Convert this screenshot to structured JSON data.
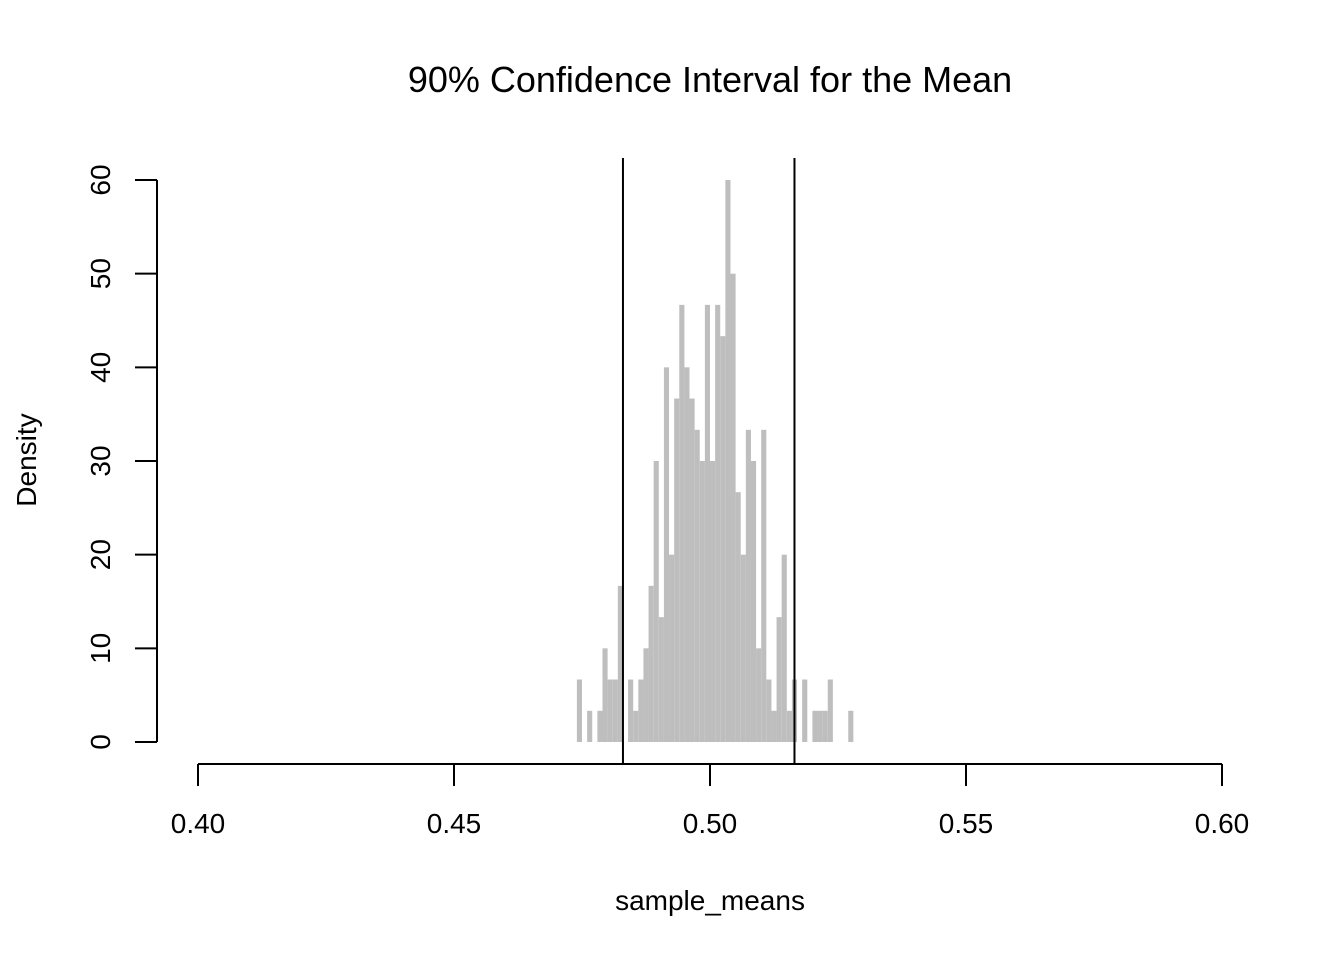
{
  "chart_data": {
    "type": "bar",
    "title": "90% Confidence Interval for the Mean",
    "xlabel": "sample_means",
    "ylabel": "Density",
    "xlim": [
      0.4,
      0.6
    ],
    "ylim": [
      0,
      60
    ],
    "x_ticks": [
      "0.40",
      "0.45",
      "0.50",
      "0.55",
      "0.60"
    ],
    "y_ticks": [
      "0",
      "10",
      "20",
      "30",
      "40",
      "50",
      "60"
    ],
    "bin_width": 0.001,
    "bin_start": 0.474,
    "density": [
      6.67,
      0,
      3.33,
      0,
      3.33,
      10,
      6.67,
      6.67,
      16.67,
      0,
      6.67,
      3.33,
      6.67,
      10,
      16.67,
      30,
      13.33,
      40,
      20,
      36.67,
      46.67,
      40,
      36.67,
      33.33,
      30,
      46.67,
      30,
      46.67,
      43.33,
      60,
      50,
      26.67,
      20,
      33.33,
      30,
      10,
      33.33,
      6.67,
      3.33,
      13.33,
      20,
      3.33,
      6.67,
      0,
      6.67,
      0,
      3.33,
      3.33,
      3.33,
      6.67,
      0,
      0,
      0,
      3.33
    ],
    "fill_color": "#bebebe",
    "ci_lines": [
      0.483,
      0.5165
    ],
    "grid": false
  }
}
